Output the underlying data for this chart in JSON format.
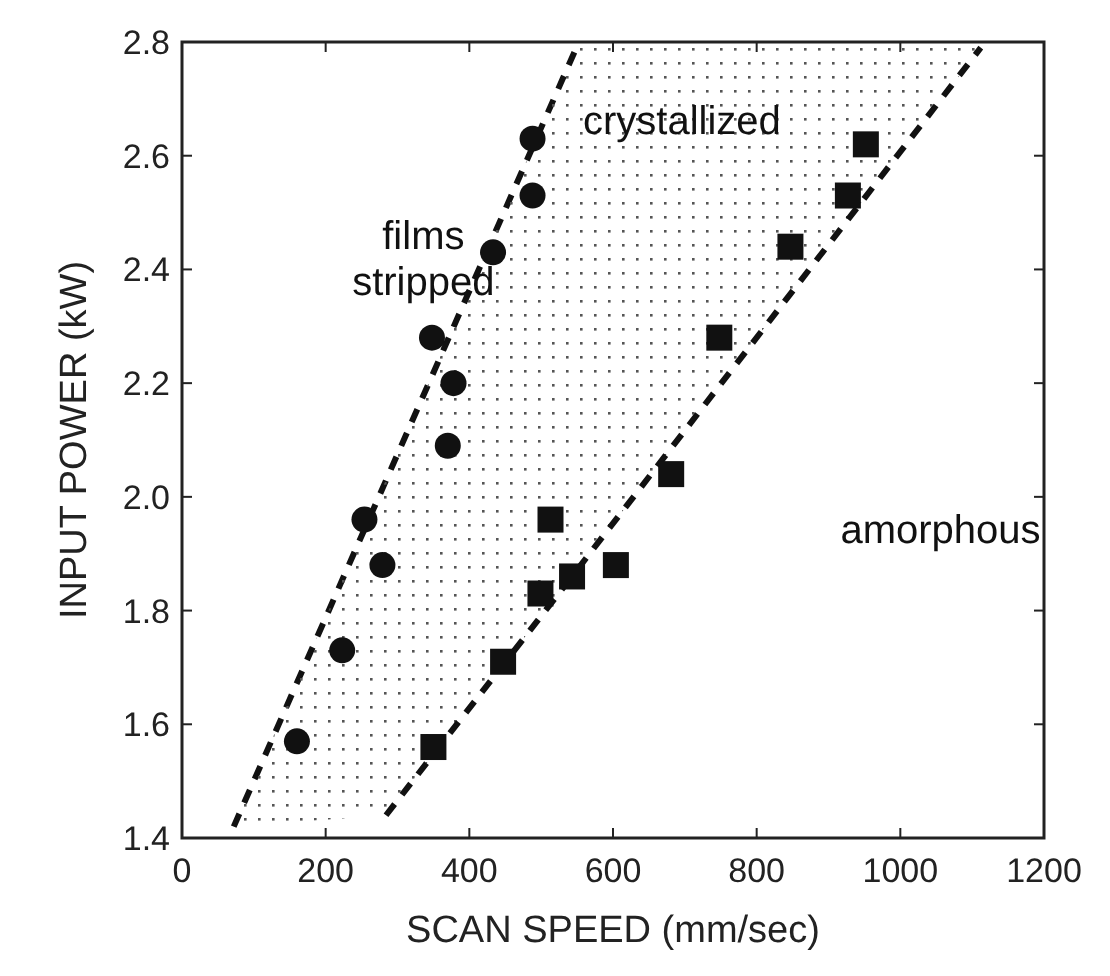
{
  "chart_data": {
    "type": "scatter",
    "xlabel": "SCAN SPEED (mm/sec)",
    "ylabel": "INPUT POWER (kW)",
    "xlim": [
      0,
      1200
    ],
    "xticks": [
      0,
      200,
      400,
      600,
      800,
      1000,
      1200
    ],
    "ylim": [
      1.4,
      2.8
    ],
    "yticks": [
      1.4,
      1.6,
      1.8,
      {
        "value": 2,
        "label": "2.0"
      },
      2.2,
      2.4,
      2.6,
      2.8
    ],
    "grid": false,
    "series": [
      {
        "marker": "circle",
        "color": "#111111",
        "x": [
          160,
          223,
          254,
          279,
          348,
          370,
          378,
          433,
          488,
          488
        ],
        "values": [
          1.57,
          1.73,
          1.96,
          1.88,
          2.28,
          2.09,
          2.2,
          2.43,
          2.53,
          2.63
        ]
      },
      {
        "marker": "square",
        "color": "#111111",
        "x": [
          350,
          447,
          499,
          513,
          543,
          604,
          681,
          748,
          847,
          927,
          952
        ],
        "values": [
          1.56,
          1.71,
          1.83,
          1.96,
          1.86,
          1.88,
          2.04,
          2.28,
          2.44,
          2.53,
          2.62
        ]
      },
      {
        "type": "line",
        "marker": "none",
        "line_style": "dashed",
        "color": "#111111",
        "x": [
          72,
          549
        ],
        "values": [
          1.42,
          2.79
        ]
      },
      {
        "type": "line",
        "marker": "none",
        "line_style": "dashed",
        "color": "#111111",
        "x": [
          72,
          284,
          549,
          1112
        ],
        "values": [
          null,
          1.44,
          1.87,
          2.79
        ],
        "lower": [
          1.42,
          1.44,
          1.87,
          2.79
        ],
        "upper": [
          1.42,
          2.03,
          2.79,
          2.79
        ]
      }
    ],
    "annotations": [
      "films stripped",
      "crystallized",
      "amorphous"
    ]
  }
}
